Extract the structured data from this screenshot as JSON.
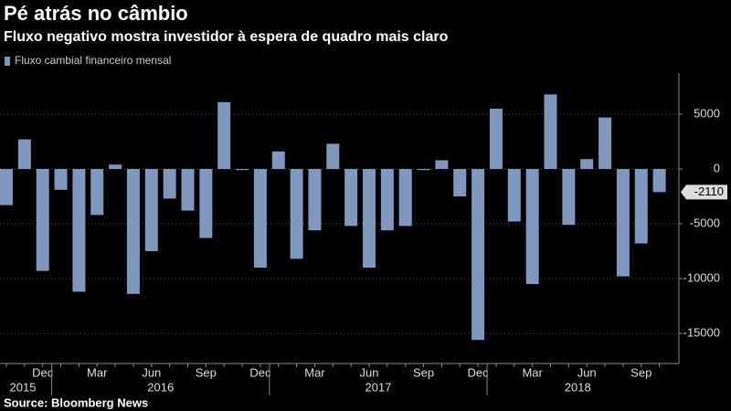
{
  "chart_data": {
    "type": "bar",
    "title": "Pé atrás no câmbio",
    "subtitle": "Fluxo negativo mostra investidor à espera de quadro mais claro",
    "source": "Source: Bloomberg News",
    "categories": [
      null,
      null,
      "Dec",
      null,
      null,
      "Mar",
      null,
      null,
      "Jun",
      null,
      null,
      "Sep",
      null,
      null,
      "Dec",
      null,
      null,
      "Mar",
      null,
      null,
      "Jun",
      null,
      null,
      "Sep",
      null,
      null,
      "Dec",
      null,
      null,
      "Mar",
      null,
      null,
      "Jun",
      null,
      null,
      "Sep",
      null
    ],
    "year_labels": [
      "2015",
      "2016",
      "2017",
      "2018"
    ],
    "series": [
      {
        "name": "Fluxo cambial financeiro mensal",
        "color": "#7f98bf",
        "values": [
          -3300,
          2700,
          -9300,
          -1900,
          -11200,
          -4200,
          400,
          -11400,
          -7500,
          -2700,
          -3800,
          -6300,
          6100,
          -100,
          -9000,
          1600,
          -8200,
          -5600,
          2300,
          -5200,
          -9000,
          -5600,
          -5200,
          -100,
          800,
          -2500,
          -15600,
          5500,
          -4800,
          -10500,
          6800,
          -5100,
          900,
          4700,
          -9800,
          -6800,
          -2110
        ]
      }
    ],
    "ylim": [
      -17500,
      8500
    ],
    "yticks": [
      5000,
      0,
      -5000,
      -10000,
      -15000
    ],
    "grid": true
  }
}
